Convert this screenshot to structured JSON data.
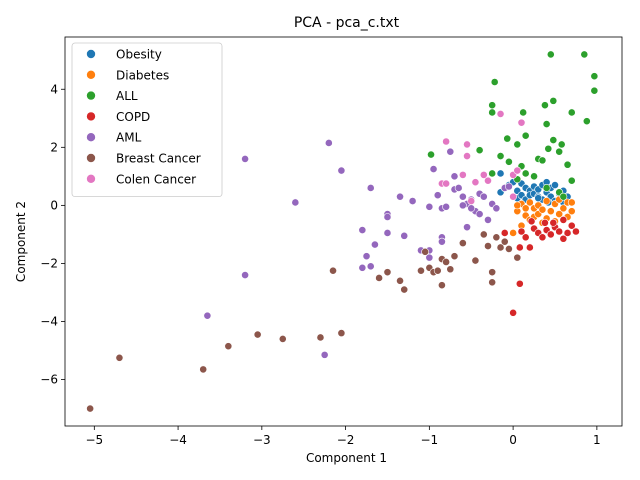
{
  "chart_data": {
    "type": "scatter",
    "title": "PCA - pca_c.txt",
    "xlabel": "Component 1",
    "ylabel": "Component 2",
    "xlim": [
      -5.35,
      1.3
    ],
    "ylim": [
      -7.6,
      5.8
    ],
    "xticks": [
      -5,
      -4,
      -3,
      -2,
      -1,
      0,
      1
    ],
    "yticks": [
      -6,
      -4,
      -2,
      0,
      2,
      4
    ],
    "xtick_labels": [
      "−5",
      "−4",
      "−3",
      "−2",
      "−1",
      "0",
      "1"
    ],
    "ytick_labels": [
      "−6",
      "−4",
      "−2",
      "0",
      "2",
      "4"
    ],
    "grid": false,
    "legend_position": "upper-left",
    "series": [
      {
        "name": "Obesity",
        "color": "#1f77b4",
        "points": [
          [
            -0.15,
            0.45
          ],
          [
            -0.1,
            0.6
          ],
          [
            -0.05,
            0.7
          ],
          [
            0.0,
            0.3
          ],
          [
            0.0,
            0.8
          ],
          [
            0.05,
            0.5
          ],
          [
            0.05,
            0.25
          ],
          [
            0.1,
            0.35
          ],
          [
            0.1,
            0.75
          ],
          [
            0.15,
            0.6
          ],
          [
            0.15,
            0.2
          ],
          [
            0.2,
            0.5
          ],
          [
            0.2,
            0.35
          ],
          [
            0.25,
            0.65
          ],
          [
            0.25,
            0.4
          ],
          [
            0.3,
            0.3
          ],
          [
            0.3,
            0.55
          ],
          [
            0.35,
            0.7
          ],
          [
            0.35,
            0.2
          ],
          [
            0.4,
            0.45
          ],
          [
            0.4,
            0.8
          ],
          [
            0.45,
            0.3
          ],
          [
            0.45,
            0.6
          ],
          [
            0.5,
            0.15
          ],
          [
            0.5,
            0.7
          ],
          [
            0.55,
            0.4
          ],
          [
            0.6,
            0.5
          ],
          [
            0.6,
            0.1
          ],
          [
            0.65,
            0.3
          ],
          [
            -0.15,
            1.1
          ],
          [
            0.3,
            0.25
          ],
          [
            0.42,
            0.1
          ]
        ]
      },
      {
        "name": "Diabetes",
        "color": "#ff7f0e",
        "points": [
          [
            0.0,
            -0.95
          ],
          [
            0.05,
            -0.2
          ],
          [
            0.1,
            -0.7
          ],
          [
            0.1,
            0.05
          ],
          [
            0.15,
            -0.35
          ],
          [
            0.2,
            -0.5
          ],
          [
            0.2,
            0.1
          ],
          [
            0.25,
            -0.1
          ],
          [
            0.25,
            -0.4
          ],
          [
            0.3,
            -0.3
          ],
          [
            0.3,
            0.0
          ],
          [
            0.35,
            -0.6
          ],
          [
            0.35,
            -0.15
          ],
          [
            0.4,
            -0.45
          ],
          [
            0.4,
            0.15
          ],
          [
            0.45,
            -0.2
          ],
          [
            0.5,
            -0.55
          ],
          [
            0.5,
            0.05
          ],
          [
            0.55,
            -0.3
          ],
          [
            0.55,
            0.2
          ],
          [
            0.6,
            -0.1
          ],
          [
            0.65,
            -0.4
          ],
          [
            0.65,
            0.1
          ],
          [
            0.7,
            -0.2
          ],
          [
            0.7,
            0.1
          ],
          [
            0.15,
            -0.1
          ],
          [
            0.05,
            0.0
          ]
        ]
      },
      {
        "name": "ALL",
        "color": "#2ca02c",
        "points": [
          [
            0.45,
            5.2
          ],
          [
            0.85,
            5.2
          ],
          [
            0.97,
            4.45
          ],
          [
            -0.22,
            4.25
          ],
          [
            0.97,
            3.95
          ],
          [
            0.48,
            3.6
          ],
          [
            0.38,
            3.45
          ],
          [
            -0.25,
            3.45
          ],
          [
            0.12,
            3.2
          ],
          [
            -0.25,
            3.2
          ],
          [
            0.7,
            3.2
          ],
          [
            0.88,
            2.9
          ],
          [
            0.4,
            2.8
          ],
          [
            0.15,
            2.4
          ],
          [
            0.48,
            2.25
          ],
          [
            -0.07,
            2.3
          ],
          [
            0.05,
            2.1
          ],
          [
            0.58,
            2.1
          ],
          [
            0.42,
            1.95
          ],
          [
            0.55,
            1.85
          ],
          [
            -0.4,
            1.9
          ],
          [
            -0.98,
            1.75
          ],
          [
            -0.15,
            1.7
          ],
          [
            0.3,
            1.6
          ],
          [
            0.35,
            1.55
          ],
          [
            0.65,
            1.4
          ],
          [
            0.1,
            1.35
          ],
          [
            -0.05,
            1.5
          ],
          [
            0.15,
            1.1
          ],
          [
            0.25,
            1.0
          ],
          [
            0.05,
            0.9
          ],
          [
            0.7,
            0.85
          ],
          [
            0.4,
            0.6
          ],
          [
            0.55,
            0.45
          ],
          [
            -0.25,
            1.1
          ],
          [
            0.6,
            0.3
          ]
        ]
      },
      {
        "name": "COPD",
        "color": "#d62728",
        "points": [
          [
            0.0,
            -3.7
          ],
          [
            0.08,
            -2.7
          ],
          [
            0.08,
            -1.45
          ],
          [
            0.2,
            -1.45
          ],
          [
            -0.1,
            -0.95
          ],
          [
            0.1,
            -0.9
          ],
          [
            0.15,
            -1.1
          ],
          [
            0.25,
            -0.8
          ],
          [
            0.3,
            -0.95
          ],
          [
            0.35,
            -1.1
          ],
          [
            0.4,
            -0.85
          ],
          [
            0.45,
            -1.0
          ],
          [
            0.5,
            -0.75
          ],
          [
            0.55,
            -0.9
          ],
          [
            0.6,
            -1.15
          ],
          [
            0.65,
            -0.95
          ],
          [
            0.7,
            -0.7
          ],
          [
            0.75,
            -0.9
          ],
          [
            0.38,
            -0.6
          ],
          [
            0.22,
            -0.55
          ],
          [
            0.48,
            -0.6
          ],
          [
            0.6,
            -0.5
          ]
        ]
      },
      {
        "name": "AML",
        "color": "#9467bd",
        "points": [
          [
            -2.2,
            2.15
          ],
          [
            -3.2,
            1.6
          ],
          [
            -2.05,
            1.2
          ],
          [
            -1.7,
            0.6
          ],
          [
            -2.6,
            0.1
          ],
          [
            -3.2,
            -2.4
          ],
          [
            -3.65,
            -3.8
          ],
          [
            -2.25,
            -5.15
          ],
          [
            -1.5,
            -0.3
          ],
          [
            -1.5,
            -0.4
          ],
          [
            -1.35,
            0.3
          ],
          [
            -1.2,
            0.15
          ],
          [
            -1.0,
            -0.05
          ],
          [
            -0.95,
            1.25
          ],
          [
            -0.9,
            0.35
          ],
          [
            -0.85,
            -0.1
          ],
          [
            -0.8,
            -0.05
          ],
          [
            -0.75,
            1.85
          ],
          [
            -0.7,
            1.0
          ],
          [
            -0.7,
            0.55
          ],
          [
            -0.6,
            0.3
          ],
          [
            -0.55,
            0.05
          ],
          [
            -0.5,
            0.2
          ],
          [
            -0.45,
            -0.2
          ],
          [
            -0.4,
            0.4
          ],
          [
            -0.35,
            0.3
          ],
          [
            -0.3,
            -0.5
          ],
          [
            -0.25,
            0.05
          ],
          [
            -0.2,
            -0.1
          ],
          [
            -0.1,
            0.6
          ],
          [
            -0.05,
            0.65
          ],
          [
            -0.55,
            -0.75
          ],
          [
            -0.85,
            -1.1
          ],
          [
            -0.85,
            -1.25
          ],
          [
            -1.0,
            -1.55
          ],
          [
            -1.1,
            -1.55
          ],
          [
            -1.0,
            -1.8
          ],
          [
            -1.3,
            -1.05
          ],
          [
            -1.5,
            -0.95
          ],
          [
            -1.65,
            -1.35
          ],
          [
            -1.8,
            -0.85
          ],
          [
            -1.75,
            -1.75
          ],
          [
            -1.7,
            -2.1
          ],
          [
            -1.8,
            -2.15
          ],
          [
            -0.65,
            0.6
          ],
          [
            -0.5,
            -0.1
          ],
          [
            -0.4,
            -0.3
          ],
          [
            -0.6,
            0.0
          ]
        ]
      },
      {
        "name": "Breast Cancer",
        "color": "#8c564b",
        "points": [
          [
            -5.05,
            -7.0
          ],
          [
            -4.7,
            -5.25
          ],
          [
            -3.7,
            -5.65
          ],
          [
            -3.4,
            -4.85
          ],
          [
            -3.05,
            -4.45
          ],
          [
            -2.75,
            -4.6
          ],
          [
            -2.3,
            -4.55
          ],
          [
            -2.05,
            -4.4
          ],
          [
            -2.15,
            -2.25
          ],
          [
            -1.6,
            -2.5
          ],
          [
            -1.5,
            -2.3
          ],
          [
            -1.35,
            -2.6
          ],
          [
            -1.3,
            -2.9
          ],
          [
            -1.1,
            -2.25
          ],
          [
            -1.0,
            -2.15
          ],
          [
            -0.95,
            -2.3
          ],
          [
            -0.9,
            -2.25
          ],
          [
            -0.85,
            -2.75
          ],
          [
            -0.85,
            -1.85
          ],
          [
            -0.75,
            -2.2
          ],
          [
            -0.7,
            -1.75
          ],
          [
            -0.6,
            -1.3
          ],
          [
            -0.45,
            -1.9
          ],
          [
            -0.35,
            -1.0
          ],
          [
            -0.3,
            -1.4
          ],
          [
            -0.25,
            -2.3
          ],
          [
            -0.25,
            -2.65
          ],
          [
            -0.15,
            -1.45
          ],
          [
            -0.1,
            -1.25
          ],
          [
            -0.05,
            -1.5
          ],
          [
            0.05,
            -1.8
          ],
          [
            -0.8,
            -1.95
          ],
          [
            -1.05,
            -1.6
          ],
          [
            -0.2,
            -1.1
          ]
        ]
      },
      {
        "name": "Colen Cancer",
        "color": "#e377c2",
        "points": [
          [
            -0.15,
            3.15
          ],
          [
            0.1,
            2.85
          ],
          [
            -0.8,
            2.2
          ],
          [
            -0.55,
            2.1
          ],
          [
            -0.55,
            1.7
          ],
          [
            -0.35,
            1.05
          ],
          [
            -0.3,
            0.85
          ],
          [
            -0.6,
            1.05
          ],
          [
            -0.85,
            0.75
          ],
          [
            -0.8,
            0.75
          ],
          [
            -0.45,
            0.8
          ],
          [
            0.0,
            1.05
          ],
          [
            0.05,
            1.2
          ],
          [
            -0.5,
            0.15
          ],
          [
            0.0,
            0.3
          ]
        ]
      }
    ]
  }
}
